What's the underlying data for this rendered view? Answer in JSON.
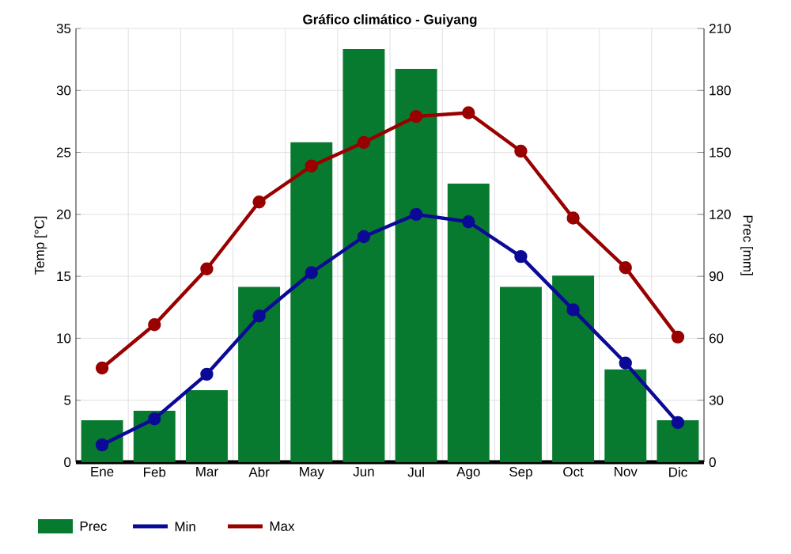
{
  "chart_data": {
    "type": "bar",
    "title": "Gráfico climático - Guiyang",
    "categories": [
      "Ene",
      "Feb",
      "Mar",
      "Abr",
      "May",
      "Jun",
      "Jul",
      "Ago",
      "Sep",
      "Oct",
      "Nov",
      "Dic"
    ],
    "series": [
      {
        "name": "Prec",
        "axis": "y2",
        "color": "#077a2f",
        "values": [
          20.3,
          24.9,
          34.9,
          84.9,
          154.9,
          200,
          190.5,
          134.9,
          84.9,
          90.3,
          44.9,
          20.3
        ]
      },
      {
        "name": "Min",
        "type": "line",
        "color": "#0a0a96",
        "values": [
          1.4,
          3.5,
          7.1,
          11.8,
          15.3,
          18.2,
          20.0,
          19.4,
          16.6,
          12.3,
          8.0,
          3.2
        ]
      },
      {
        "name": "Max",
        "type": "line",
        "color": "#990000",
        "values": [
          7.6,
          11.1,
          15.6,
          21.0,
          23.9,
          25.8,
          27.9,
          28.2,
          25.1,
          19.7,
          15.7,
          10.1
        ]
      }
    ],
    "ylabel": "Temp [°C]",
    "y2label": "Prec [mm]",
    "ylim": [
      0,
      35
    ],
    "yticks": [
      0,
      5,
      10,
      15,
      20,
      25,
      30,
      35
    ],
    "y2lim": [
      0,
      210
    ],
    "y2ticks": [
      0,
      30,
      60,
      90,
      120,
      150,
      180,
      210
    ],
    "grid": true,
    "legend": "bottom",
    "marker": "circle"
  }
}
